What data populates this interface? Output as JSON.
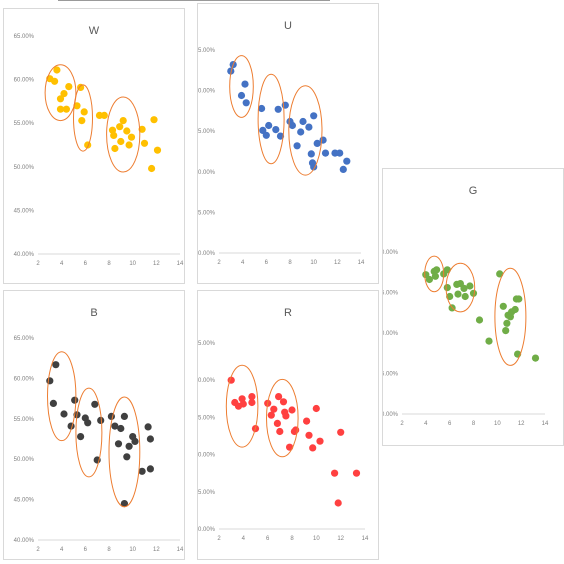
{
  "chart_data": [
    {
      "type": "scatter",
      "title": "W",
      "color": "#ffc000",
      "xlim": [
        2,
        14
      ],
      "ylim": [
        0.4,
        0.65
      ],
      "xticks": [
        "2",
        "4",
        "6",
        "8",
        "10",
        "12",
        "14"
      ],
      "yticks": [
        "40.00%",
        "45.00%",
        "50.00%",
        "55.00%",
        "60.00%",
        "65.00%"
      ],
      "grid": false,
      "points": [
        [
          3.0,
          0.601
        ],
        [
          3.4,
          0.598
        ],
        [
          3.6,
          0.611
        ],
        [
          3.9,
          0.578
        ],
        [
          3.9,
          0.566
        ],
        [
          4.2,
          0.584
        ],
        [
          4.4,
          0.566
        ],
        [
          4.6,
          0.592
        ],
        [
          5.3,
          0.57
        ],
        [
          5.6,
          0.591
        ],
        [
          5.7,
          0.553
        ],
        [
          5.9,
          0.563
        ],
        [
          6.2,
          0.525
        ],
        [
          7.2,
          0.559
        ],
        [
          7.6,
          0.559
        ],
        [
          8.3,
          0.542
        ],
        [
          8.4,
          0.536
        ],
        [
          8.5,
          0.521
        ],
        [
          8.9,
          0.546
        ],
        [
          9.0,
          0.529
        ],
        [
          9.2,
          0.553
        ],
        [
          9.5,
          0.541
        ],
        [
          9.7,
          0.525
        ],
        [
          9.9,
          0.534
        ],
        [
          10.8,
          0.543
        ],
        [
          11.0,
          0.527
        ],
        [
          11.6,
          0.498
        ],
        [
          11.8,
          0.554
        ],
        [
          12.1,
          0.519
        ]
      ],
      "ellipses": [
        {
          "cx": 3.9,
          "cy": 0.585,
          "rx": 1.3,
          "ry": 0.032
        },
        {
          "cx": 5.8,
          "cy": 0.556,
          "rx": 0.8,
          "ry": 0.038
        },
        {
          "cx": 9.2,
          "cy": 0.537,
          "rx": 1.4,
          "ry": 0.043
        }
      ]
    },
    {
      "type": "scatter",
      "title": "U",
      "color": "#4472c4",
      "xlim": [
        2,
        14
      ],
      "ylim": [
        0.4,
        0.65
      ],
      "xticks": [
        "2",
        "4",
        "6",
        "8",
        "10",
        "12",
        "14"
      ],
      "yticks": [
        "40.00%",
        "45.00%",
        "50.00%",
        "55.00%",
        "60.00%",
        "65.00%"
      ],
      "grid": false,
      "points": [
        [
          3.0,
          0.624
        ],
        [
          3.2,
          0.632
        ],
        [
          3.9,
          0.594
        ],
        [
          4.2,
          0.608
        ],
        [
          4.3,
          0.585
        ],
        [
          5.6,
          0.578
        ],
        [
          5.7,
          0.551
        ],
        [
          6.0,
          0.545
        ],
        [
          6.2,
          0.557
        ],
        [
          6.8,
          0.552
        ],
        [
          7.0,
          0.577
        ],
        [
          7.2,
          0.544
        ],
        [
          7.6,
          0.582
        ],
        [
          8.0,
          0.562
        ],
        [
          8.2,
          0.557
        ],
        [
          8.6,
          0.532
        ],
        [
          8.9,
          0.549
        ],
        [
          9.1,
          0.562
        ],
        [
          9.6,
          0.555
        ],
        [
          9.8,
          0.522
        ],
        [
          9.9,
          0.511
        ],
        [
          10.0,
          0.506
        ],
        [
          10.0,
          0.569
        ],
        [
          10.3,
          0.535
        ],
        [
          10.8,
          0.539
        ],
        [
          11.0,
          0.523
        ],
        [
          11.8,
          0.523
        ],
        [
          12.2,
          0.523
        ],
        [
          12.5,
          0.503
        ],
        [
          12.8,
          0.513
        ]
      ],
      "ellipses": [
        {
          "cx": 3.9,
          "cy": 0.605,
          "rx": 1.0,
          "ry": 0.038
        },
        {
          "cx": 6.4,
          "cy": 0.565,
          "rx": 1.1,
          "ry": 0.055
        },
        {
          "cx": 9.3,
          "cy": 0.551,
          "rx": 1.4,
          "ry": 0.055
        }
      ]
    },
    {
      "type": "scatter",
      "title": "G",
      "color": "#70ad47",
      "xlim": [
        2,
        14
      ],
      "ylim": [
        0.4,
        0.6
      ],
      "xticks": [
        "2",
        "4",
        "6",
        "8",
        "10",
        "12",
        "14"
      ],
      "yticks": [
        "40.00%",
        "45.00%",
        "50.00%",
        "55.00%",
        "60.00%"
      ],
      "grid": false,
      "points": [
        [
          4.0,
          0.572
        ],
        [
          4.3,
          0.566
        ],
        [
          4.7,
          0.576
        ],
        [
          4.8,
          0.57
        ],
        [
          4.9,
          0.578
        ],
        [
          5.5,
          0.573
        ],
        [
          5.8,
          0.578
        ],
        [
          5.8,
          0.556
        ],
        [
          6.0,
          0.545
        ],
        [
          6.2,
          0.531
        ],
        [
          6.6,
          0.56
        ],
        [
          6.7,
          0.548
        ],
        [
          6.9,
          0.561
        ],
        [
          7.2,
          0.555
        ],
        [
          7.3,
          0.545
        ],
        [
          7.7,
          0.558
        ],
        [
          8.0,
          0.549
        ],
        [
          8.5,
          0.516
        ],
        [
          9.3,
          0.49
        ],
        [
          10.2,
          0.573
        ],
        [
          10.5,
          0.533
        ],
        [
          10.7,
          0.503
        ],
        [
          10.8,
          0.512
        ],
        [
          10.9,
          0.522
        ],
        [
          11.1,
          0.52
        ],
        [
          11.2,
          0.526
        ],
        [
          11.5,
          0.529
        ],
        [
          11.6,
          0.542
        ],
        [
          11.7,
          0.474
        ],
        [
          11.8,
          0.542
        ],
        [
          13.2,
          0.469
        ]
      ],
      "ellipses": [
        {
          "cx": 4.7,
          "cy": 0.573,
          "rx": 0.8,
          "ry": 0.022
        },
        {
          "cx": 6.9,
          "cy": 0.556,
          "rx": 1.2,
          "ry": 0.03
        },
        {
          "cx": 11.1,
          "cy": 0.52,
          "rx": 1.3,
          "ry": 0.06
        }
      ]
    },
    {
      "type": "scatter",
      "title": "B",
      "color": "#404040",
      "xlim": [
        2,
        14
      ],
      "ylim": [
        0.4,
        0.65
      ],
      "xticks": [
        "2",
        "4",
        "6",
        "8",
        "10",
        "12",
        "14"
      ],
      "yticks": [
        "40.00%",
        "45.00%",
        "50.00%",
        "55.00%",
        "60.00%",
        "65.00%"
      ],
      "grid": false,
      "points": [
        [
          3.0,
          0.597
        ],
        [
          3.3,
          0.569
        ],
        [
          3.5,
          0.617
        ],
        [
          4.2,
          0.556
        ],
        [
          4.8,
          0.541
        ],
        [
          5.1,
          0.573
        ],
        [
          5.3,
          0.555
        ],
        [
          5.6,
          0.528
        ],
        [
          6.0,
          0.551
        ],
        [
          6.2,
          0.545
        ],
        [
          6.8,
          0.568
        ],
        [
          7.0,
          0.499
        ],
        [
          7.3,
          0.548
        ],
        [
          8.2,
          0.553
        ],
        [
          8.5,
          0.541
        ],
        [
          8.8,
          0.519
        ],
        [
          9.0,
          0.538
        ],
        [
          9.3,
          0.553
        ],
        [
          9.3,
          0.445
        ],
        [
          9.5,
          0.503
        ],
        [
          9.7,
          0.516
        ],
        [
          10.0,
          0.528
        ],
        [
          10.2,
          0.522
        ],
        [
          10.8,
          0.485
        ],
        [
          11.3,
          0.54
        ],
        [
          11.5,
          0.525
        ],
        [
          11.5,
          0.488
        ]
      ],
      "ellipses": [
        {
          "cx": 4.0,
          "cy": 0.578,
          "rx": 1.2,
          "ry": 0.055
        },
        {
          "cx": 6.3,
          "cy": 0.533,
          "rx": 1.1,
          "ry": 0.055
        },
        {
          "cx": 9.3,
          "cy": 0.509,
          "rx": 1.3,
          "ry": 0.068
        }
      ]
    },
    {
      "type": "scatter",
      "title": "R",
      "color": "#ff4040",
      "xlim": [
        2,
        14
      ],
      "ylim": [
        0.4,
        0.65
      ],
      "xticks": [
        "2",
        "4",
        "6",
        "8",
        "10",
        "12",
        "14"
      ],
      "yticks": [
        "40.00%",
        "45.00%",
        "50.00%",
        "55.00%",
        "60.00%",
        "65.00%"
      ],
      "grid": false,
      "points": [
        [
          3.0,
          0.6
        ],
        [
          3.3,
          0.57
        ],
        [
          3.6,
          0.565
        ],
        [
          3.9,
          0.575
        ],
        [
          4.0,
          0.568
        ],
        [
          4.7,
          0.578
        ],
        [
          4.7,
          0.57
        ],
        [
          5.0,
          0.535
        ],
        [
          6.0,
          0.569
        ],
        [
          6.3,
          0.553
        ],
        [
          6.5,
          0.561
        ],
        [
          6.8,
          0.542
        ],
        [
          6.9,
          0.578
        ],
        [
          7.0,
          0.531
        ],
        [
          7.3,
          0.571
        ],
        [
          7.4,
          0.557
        ],
        [
          7.5,
          0.552
        ],
        [
          7.8,
          0.51
        ],
        [
          8.0,
          0.56
        ],
        [
          8.2,
          0.531
        ],
        [
          8.3,
          0.533
        ],
        [
          9.2,
          0.545
        ],
        [
          9.4,
          0.526
        ],
        [
          9.7,
          0.509
        ],
        [
          10.0,
          0.562
        ],
        [
          10.3,
          0.518
        ],
        [
          11.5,
          0.475
        ],
        [
          11.8,
          0.435
        ],
        [
          12.0,
          0.53
        ],
        [
          13.3,
          0.475
        ]
      ],
      "ellipses": [
        {
          "cx": 3.9,
          "cy": 0.565,
          "rx": 1.3,
          "ry": 0.055
        },
        {
          "cx": 7.2,
          "cy": 0.549,
          "rx": 1.3,
          "ry": 0.052
        }
      ]
    }
  ]
}
